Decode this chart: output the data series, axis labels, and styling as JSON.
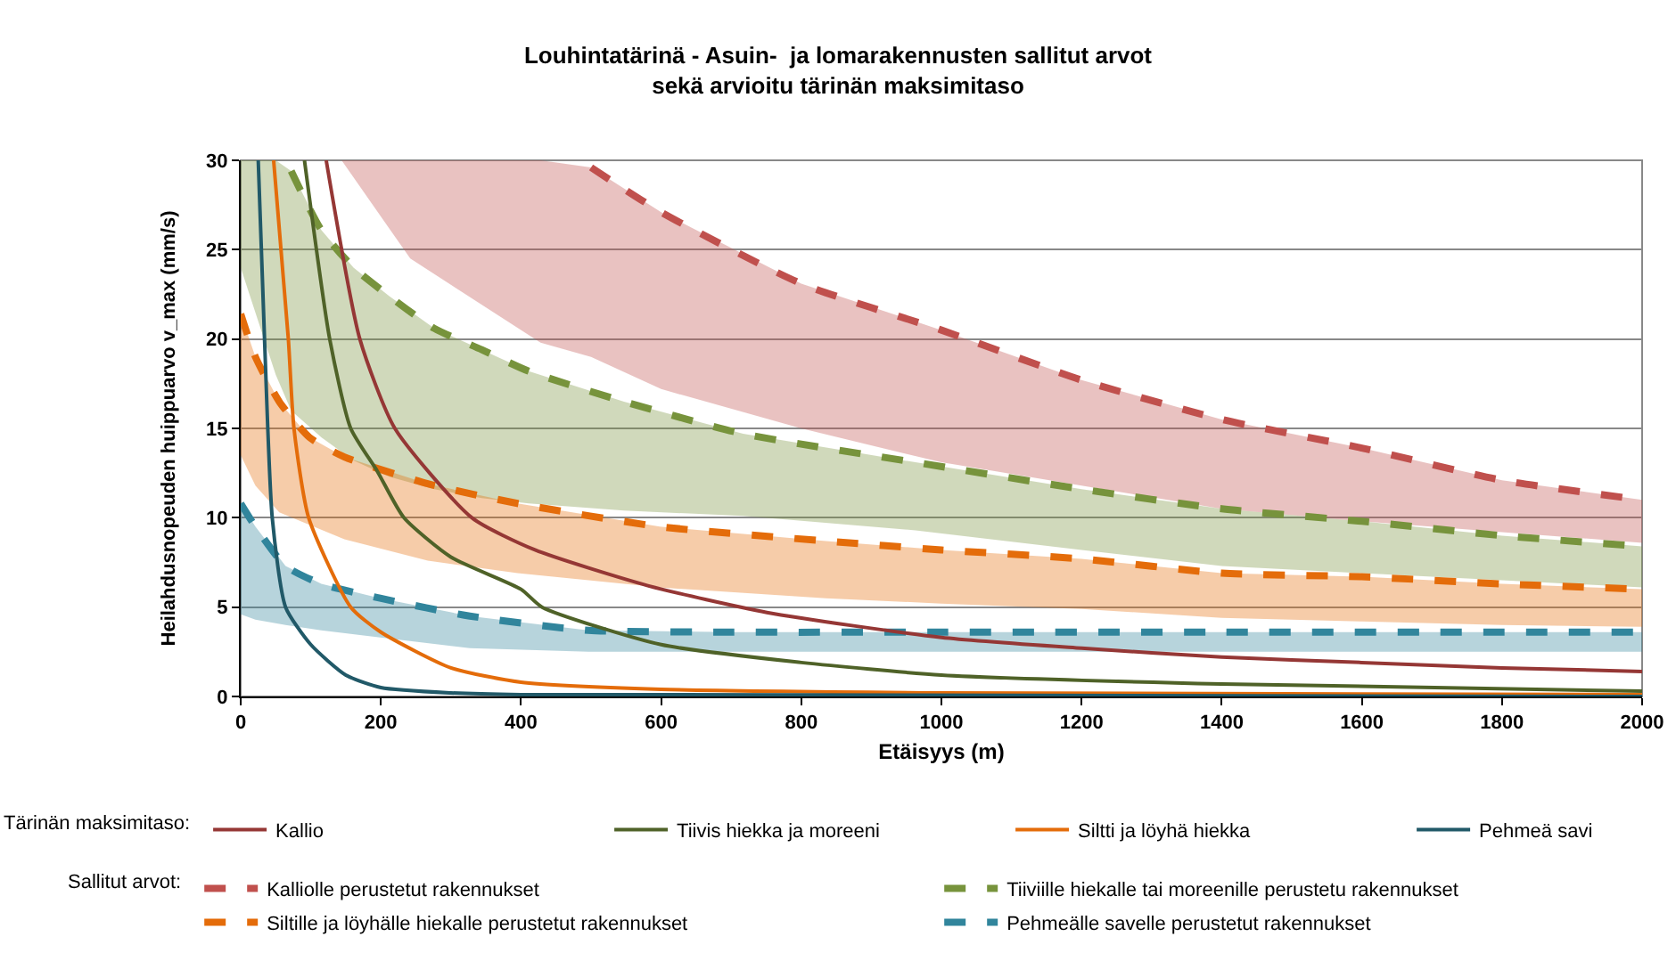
{
  "chart_data": {
    "type": "line",
    "title": "Louhintatärinä - Asuin-  ja lomarakennusten sallitut arvot\nsekä arvioitu tärinän maksimitaso",
    "xlabel": "Etäisyys (m)",
    "ylabel": "Heilahdusnopeuden huippuarvo v_max (mm/s)",
    "annotations": [
      "Tärinän maksimitaso:",
      "Sallitut arvot:"
    ],
    "xlim": [
      0,
      2000
    ],
    "ylim": [
      0,
      30
    ],
    "xticks": [
      0,
      200,
      400,
      600,
      800,
      1000,
      1200,
      1400,
      1600,
      1800,
      2000
    ],
    "yticks": [
      0,
      5,
      10,
      15,
      20,
      25,
      30
    ],
    "grid": "y",
    "legend": "bottom",
    "line_style": "solid",
    "series": [
      {
        "name": "Kalliolle perustetut rakennukset",
        "color": "#c0504d",
        "line_style": "dashed",
        "x": [
          144,
          242,
          428,
          500,
          600,
          800,
          1000,
          1200,
          1400,
          1600,
          1800,
          2000
        ],
        "values": [
          null,
          null,
          null,
          29.6,
          27.1,
          23.1,
          20.5,
          17.7,
          15.5,
          13.9,
          12.1,
          11.0
        ],
        "upper": [
          30,
          30,
          30,
          29.6,
          27.1,
          23.1,
          20.5,
          17.7,
          15.5,
          13.9,
          12.1,
          11.0
        ],
        "lower": [
          30,
          24.5,
          19.8,
          19.0,
          17.2,
          15.0,
          13.1,
          11.8,
          10.5,
          9.8,
          9.2,
          8.6
        ]
      },
      {
        "name": "Tiiviille hiekalle tai moreenille perustetu rakennukset",
        "color": "#77933c",
        "line_style": "dashed",
        "x": [
          0,
          50,
          72,
          115,
          161,
          212,
          276,
          344,
          411,
          547,
          717,
          963,
          1200,
          1400,
          1600,
          1800,
          2000
        ],
        "values": [
          null,
          null,
          29.4,
          26.1,
          24.0,
          22.4,
          20.6,
          19.4,
          18.2,
          16.5,
          14.7,
          13.1,
          11.6,
          10.5,
          9.8,
          9.0,
          8.4
        ],
        "upper": [
          30,
          30,
          29.4,
          26.1,
          24.0,
          22.4,
          20.6,
          19.4,
          18.2,
          16.5,
          14.7,
          13.1,
          11.6,
          10.5,
          9.8,
          9.0,
          8.4
        ],
        "lower": [
          24,
          18,
          16,
          14.5,
          13.2,
          12.3,
          11.6,
          11.1,
          10.8,
          10.4,
          10.1,
          9.3,
          8.2,
          7.3,
          6.9,
          6.5,
          6.1
        ]
      },
      {
        "name": "Siltille ja löyhälle hiekalle perustetut rakennukset",
        "color": "#e46c0a",
        "line_style": "dashed",
        "x": [
          0,
          21,
          55,
          98,
          148,
          267,
          395,
          598,
          835,
          1000,
          1200,
          1400,
          1600,
          1800,
          2000
        ],
        "values": [
          21.4,
          19.0,
          16.5,
          14.5,
          13.4,
          11.9,
          10.8,
          9.5,
          8.7,
          8.2,
          7.7,
          6.9,
          6.7,
          6.3,
          6.0
        ],
        "upper": [
          21.4,
          19.0,
          16.5,
          14.5,
          13.4,
          11.9,
          10.8,
          9.5,
          8.7,
          8.2,
          7.7,
          6.9,
          6.7,
          6.3,
          6.0
        ],
        "lower": [
          13.5,
          11.8,
          10.3,
          9.6,
          8.8,
          7.6,
          6.9,
          6.1,
          5.5,
          5.2,
          4.9,
          4.4,
          4.2,
          4.0,
          3.9
        ]
      },
      {
        "name": "Pehmeälle savelle perustetut rakennukset",
        "color": "#31859c",
        "line_style": "dashed",
        "x": [
          0,
          21,
          64,
          115,
          199,
          327,
          496,
          700,
          1000,
          1400,
          2000
        ],
        "values": [
          10.8,
          9.5,
          7.3,
          6.3,
          5.5,
          4.5,
          3.7,
          3.6,
          3.6,
          3.6,
          3.6
        ],
        "upper": [
          10.8,
          9.5,
          7.3,
          6.3,
          5.5,
          4.5,
          3.7,
          3.6,
          3.6,
          3.6,
          3.6
        ],
        "lower": [
          4.6,
          4.3,
          4.0,
          3.7,
          3.3,
          2.7,
          2.5,
          2.5,
          2.5,
          2.5,
          2.5
        ]
      },
      {
        "name": "Kallio",
        "color": "#953735",
        "x": [
          122,
          170,
          220,
          330,
          420,
          581,
          751,
          1000,
          1200,
          1400,
          1600,
          1800,
          2000
        ],
        "values": [
          30,
          20,
          15,
          10,
          8.2,
          6.2,
          4.7,
          3.3,
          2.7,
          2.2,
          1.9,
          1.6,
          1.4
        ]
      },
      {
        "name": "Tiivis hiekka ja moreeni",
        "color": "#4f6228",
        "x": [
          91,
          127,
          157,
          195,
          233,
          300,
          400,
          430,
          600,
          800,
          1000,
          1400,
          2000
        ],
        "values": [
          30,
          20,
          15,
          12.6,
          10,
          7.8,
          6.0,
          5,
          2.9,
          1.9,
          1.2,
          0.7,
          0.3
        ]
      },
      {
        "name": "Siltti ja löyhä hiekka",
        "color": "#e46c0a",
        "x": [
          47,
          68,
          76,
          97,
          157,
          200,
          300,
          400,
          600,
          1000,
          2000
        ],
        "values": [
          30,
          20,
          15,
          10,
          5,
          3.6,
          1.6,
          0.8,
          0.4,
          0.2,
          0.1
        ]
      },
      {
        "name": "Pehmeä savi",
        "color": "#215968",
        "x": [
          25,
          34,
          45,
          64,
          100,
          150,
          200,
          300,
          400,
          600,
          2000
        ],
        "values": [
          30,
          20,
          10,
          5,
          2.9,
          1.2,
          0.5,
          0.2,
          0.1,
          0.1,
          0
        ]
      }
    ]
  }
}
